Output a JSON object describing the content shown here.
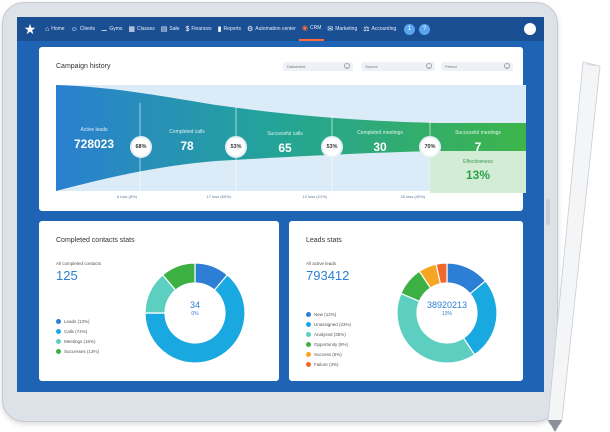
{
  "nav": {
    "items": [
      {
        "label": "Home",
        "icon": "home-icon",
        "glyph": "⌂"
      },
      {
        "label": "Clients",
        "icon": "user-icon",
        "glyph": "☺"
      },
      {
        "label": "Gyms",
        "icon": "dumbbell-icon",
        "glyph": "⚊"
      },
      {
        "label": "Classes",
        "icon": "classes-icon",
        "glyph": "▦"
      },
      {
        "label": "Sale",
        "icon": "sale-icon",
        "glyph": "▤"
      },
      {
        "label": "Finances",
        "icon": "finances-icon",
        "glyph": "$"
      },
      {
        "label": "Reports",
        "icon": "reports-icon",
        "glyph": "▮"
      },
      {
        "label": "Automation center",
        "icon": "automation-icon",
        "glyph": "⚙"
      },
      {
        "label": "CRM",
        "icon": "crm-icon",
        "glyph": "◉",
        "active": true
      },
      {
        "label": "Marketing",
        "icon": "marketing-icon",
        "glyph": "✉"
      },
      {
        "label": "Accounting",
        "icon": "accounting-icon",
        "glyph": "⚖"
      }
    ],
    "notification_badge": "1",
    "help_glyph": "?"
  },
  "campaign": {
    "title": "Campaign history",
    "filters": [
      "Datasheet",
      "Source",
      "Period"
    ],
    "stages": [
      {
        "label": "Active leads",
        "value": "728023"
      },
      {
        "label": "Completed calls",
        "value": "78"
      },
      {
        "label": "Successful calls",
        "value": "65"
      },
      {
        "label": "Completed meetings",
        "value": "30"
      },
      {
        "label": "Successful meetings",
        "value": "7"
      }
    ],
    "conversion": [
      "68%",
      "53%",
      "53%",
      "70%"
    ],
    "losses": [
      "6 loss (8%)",
      "17 loss (60%)",
      "12 loss (21%)",
      "26 loss (40%)"
    ],
    "effectiveness_label": "Effectiveness",
    "effectiveness_value": "13%"
  },
  "contacts": {
    "title": "Completed contacts stats",
    "subtitle": "All completed contacts",
    "total": "125",
    "center_value": "34",
    "center_pct": "0%",
    "legend": [
      {
        "label": "Leads (13%)",
        "color": "#2c7fd4"
      },
      {
        "label": "Calls (74%)",
        "color": "#19a9e0"
      },
      {
        "label": "Meetings (16%)",
        "color": "#5ccfc0"
      },
      {
        "label": "Successes (13%)",
        "color": "#3cb043"
      }
    ]
  },
  "leads": {
    "title": "Leads stats",
    "subtitle": "All active leads",
    "total": "793412",
    "center_value": "38920213",
    "center_pct": "13%",
    "legend": [
      {
        "label": "New (12%)",
        "color": "#2c7fd4"
      },
      {
        "label": "Unassigned (23%)",
        "color": "#19a9e0"
      },
      {
        "label": "Analyzed (35%)",
        "color": "#5ccfc0"
      },
      {
        "label": "Opportunity (8%)",
        "color": "#3cb043"
      },
      {
        "label": "Success (5%)",
        "color": "#f5a623"
      },
      {
        "label": "Failure (3%)",
        "color": "#f0692a"
      }
    ]
  },
  "colors": {
    "accent": "#2c7fd4",
    "screen_bg": "#1e63b4",
    "topbar": "#1b4f94",
    "active_nav": "#ff6b3d"
  }
}
